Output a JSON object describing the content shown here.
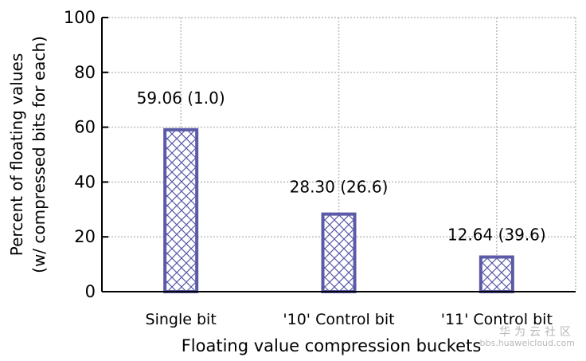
{
  "chart_data": {
    "type": "bar",
    "title": "",
    "xlabel": "Floating value compression buckets",
    "ylabel_lines": [
      "Percent of floating values",
      "(w/ compressed bits for each)"
    ],
    "categories": [
      "Single bit",
      "'10' Control bit",
      "'11' Control bit"
    ],
    "values": [
      59.06,
      28.3,
      12.64
    ],
    "bar_labels": [
      "59.06 (1.0)",
      "28.30 (26.6)",
      "12.64 (39.6)"
    ],
    "ylim": [
      0,
      100
    ],
    "yticks": [
      0,
      20,
      40,
      60,
      80,
      100
    ],
    "grid": true,
    "bar_pattern": "crosshatch",
    "colors": {
      "bar_stroke": "#5a5aa8",
      "bar_hatch": "#5a5aa8",
      "bar_fill": "#ffffff",
      "grid": "#bcbcbc",
      "axis": "#000000"
    }
  },
  "watermark": {
    "line1": "华为云社区",
    "line2": "bbs.huaweicloud.com"
  }
}
